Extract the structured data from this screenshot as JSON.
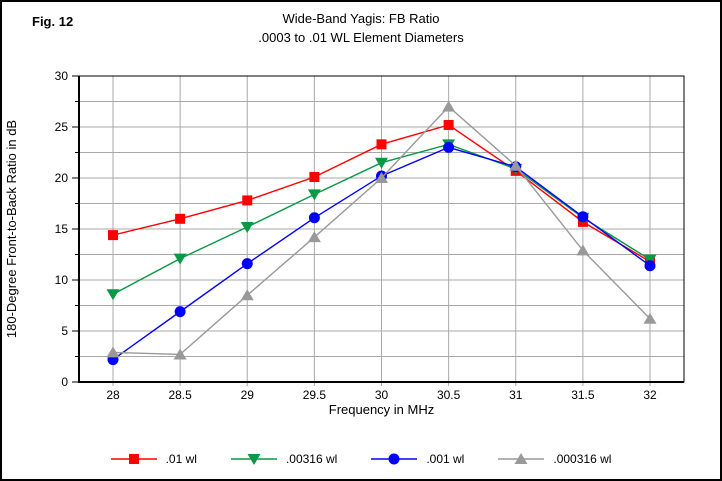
{
  "figure_label": "Fig. 12",
  "header": {
    "title": "Wide-Band Yagis: FB Ratio",
    "subtitle": ".0003 to .01 WL Element Diameters"
  },
  "chart_data": {
    "type": "line",
    "title": "Wide-Band Yagis: FB Ratio",
    "subtitle": ".0003 to .01 WL Element Diameters",
    "xlabel": "Frequency in MHz",
    "ylabel": "180-Degree Front-to-Back Ratio in dB",
    "x": [
      28,
      28.5,
      29,
      29.5,
      30,
      30.5,
      31,
      31.5,
      32
    ],
    "x_tick_labels": [
      "28",
      "28.5",
      "29",
      "29.5",
      "30",
      "30.5",
      "31",
      "31.5",
      "32"
    ],
    "y_tick_labels": [
      "0",
      "5",
      "10",
      "15",
      "20",
      "25",
      "30"
    ],
    "y_major_ticks": [
      0,
      5,
      10,
      15,
      20,
      25,
      30
    ],
    "y_grid_step": 2.5,
    "ylim": [
      0,
      30
    ],
    "grid": true,
    "legend_position": "bottom",
    "series": [
      {
        "name": ".01 wl",
        "marker": "square",
        "color": "#ff0000",
        "values": [
          14.4,
          16.0,
          17.8,
          20.1,
          23.3,
          25.2,
          20.7,
          15.7,
          11.8
        ]
      },
      {
        "name": ".00316 wl",
        "marker": "triangle-down",
        "color": "#089944",
        "values": [
          8.6,
          12.1,
          15.2,
          18.4,
          21.5,
          23.3,
          20.9,
          16.1,
          12.0
        ]
      },
      {
        "name": ".001 wl",
        "marker": "circle",
        "color": "#0000ff",
        "values": [
          2.2,
          6.9,
          11.6,
          16.1,
          20.2,
          23.0,
          21.1,
          16.2,
          11.4
        ]
      },
      {
        "name": ".000316 wl",
        "marker": "triangle-up",
        "color": "#999999",
        "values": [
          2.9,
          2.7,
          8.5,
          14.2,
          20.0,
          27.0,
          21.2,
          12.9,
          6.2
        ]
      }
    ]
  },
  "colors": {
    "gridline": "#a9a9a9",
    "axis": "#000000",
    "background": "#ffffff"
  }
}
